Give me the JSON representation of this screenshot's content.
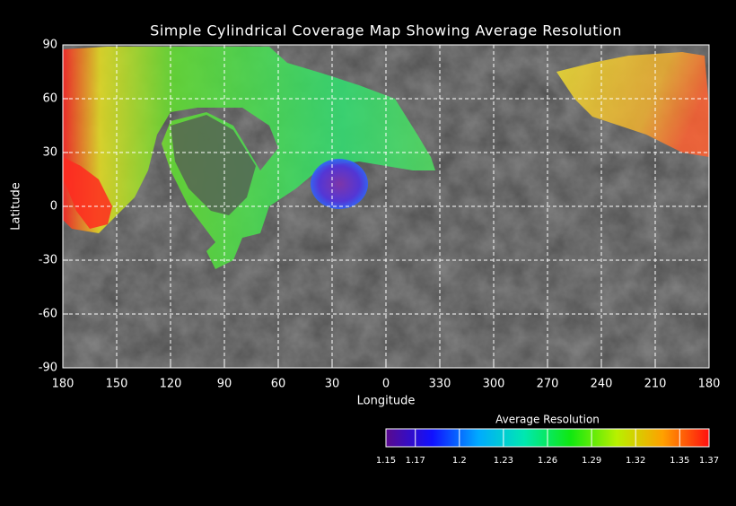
{
  "chart_data": {
    "type": "map",
    "title": "Simple Cylindrical Coverage Map Showing Average Resolution",
    "x_label": "Longitude",
    "y_label": "Latitude",
    "xlim": [
      180,
      -180
    ],
    "ylim": [
      -90,
      90
    ],
    "xticks": [
      180,
      150,
      120,
      90,
      60,
      30,
      0,
      {
        "value": -30,
        "label": "330"
      },
      {
        "value": -60,
        "label": "300"
      },
      {
        "value": -90,
        "label": "270"
      },
      {
        "value": -120,
        "label": "240"
      },
      {
        "value": -150,
        "label": "210"
      },
      {
        "value": -180,
        "label": "180"
      }
    ],
    "yticks": [
      90,
      60,
      30,
      0,
      -30,
      -60,
      -90
    ],
    "grid": true,
    "colorbar": {
      "label": "Average Resolution",
      "lim": [
        1.15,
        1.37
      ],
      "ticks": [
        1.15,
        1.17,
        1.2,
        1.23,
        1.26,
        1.29,
        1.32,
        1.35,
        1.37
      ],
      "colors": [
        "#5a0a8c",
        "#1010ff",
        "#00aaff",
        "#00e8b0",
        "#10e810",
        "#b8f000",
        "#ffa000",
        "#ff1010"
      ]
    }
  }
}
